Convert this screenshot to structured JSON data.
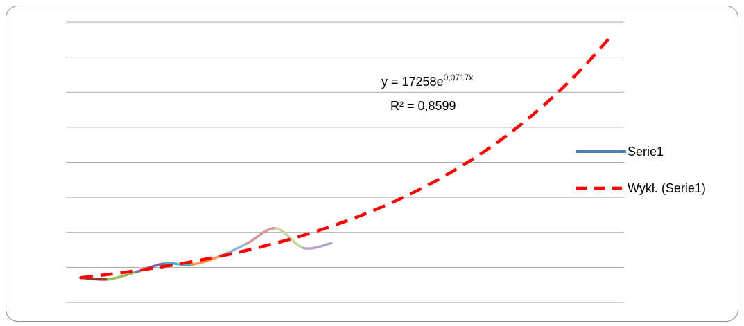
{
  "chart_data": {
    "type": "line",
    "title": "",
    "xlabel": "",
    "ylabel": "",
    "grid": true,
    "gridline_count": 9,
    "legend_position": "right",
    "series": [
      {
        "name": "Serie1",
        "color": "#4f81bd",
        "segment_colors": [
          "#943634",
          "#9bbb59",
          "#8064a2",
          "#4bacc6",
          "#f79646",
          "#95b3d7",
          "#d99694",
          "#c3d69b",
          "#b2a2c7"
        ],
        "x": [
          1,
          2,
          3,
          4,
          5,
          6,
          7,
          8,
          9,
          10
        ],
        "values": [
          0.3,
          0.28,
          0.37,
          0.47,
          0.46,
          0.56,
          0.72,
          0.9,
          0.66,
          0.72
        ]
      },
      {
        "name": "Wykł. (Serie1)",
        "color": "#ff0000",
        "dashed": true,
        "trendline": "exponential",
        "x": [
          1,
          20
        ],
        "values": [
          0.3,
          3.22
        ]
      }
    ],
    "annotation": {
      "equation_main": "y = 17258e",
      "equation_exp": "0,0717x",
      "r_squared": "R² = 0,8599"
    }
  }
}
